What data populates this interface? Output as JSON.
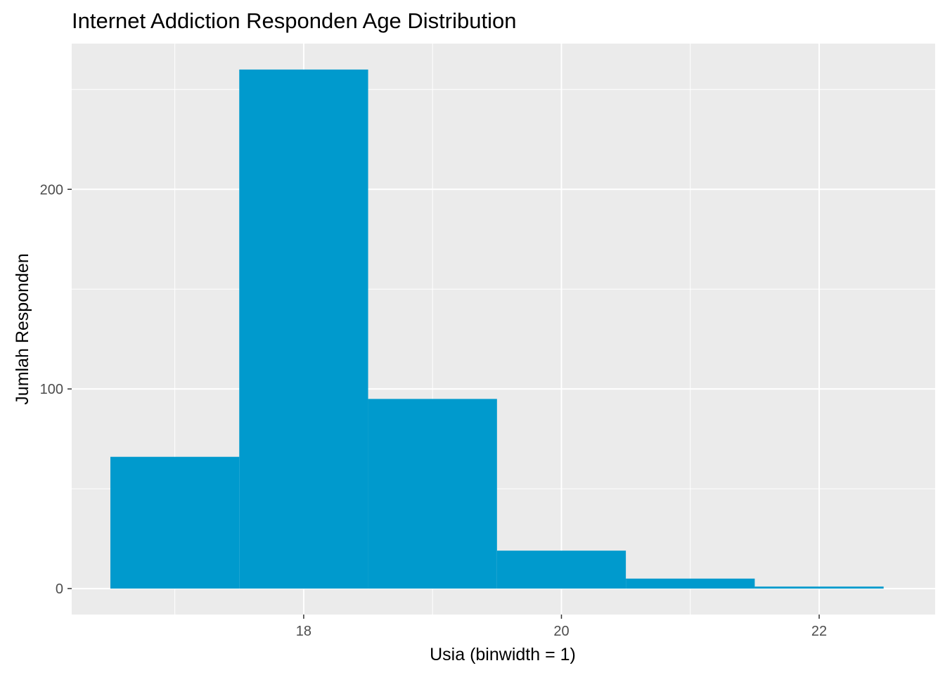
{
  "chart_data": {
    "type": "bar",
    "title": "Internet Addiction Responden Age Distribution",
    "xlabel": "Usia (binwidth = 1)",
    "ylabel": "Jumlah Responden",
    "binwidth": 1,
    "bins": [
      {
        "x": 17,
        "count": 66
      },
      {
        "x": 18,
        "count": 260
      },
      {
        "x": 19,
        "count": 95
      },
      {
        "x": 20,
        "count": 19
      },
      {
        "x": 21,
        "count": 5
      },
      {
        "x": 22,
        "count": 1
      }
    ],
    "xlim": [
      16.2,
      22.9
    ],
    "ylim": [
      -13,
      273
    ],
    "x_ticks": [
      18,
      20,
      22
    ],
    "x_minor": [
      17,
      19,
      21
    ],
    "y_ticks": [
      0,
      100,
      200
    ],
    "y_minor": [
      50,
      150,
      250
    ],
    "x_tick_labels": [
      "18",
      "20",
      "22"
    ],
    "y_tick_labels": [
      "0",
      "100",
      "200"
    ],
    "grid": true,
    "colors": {
      "bar": "#009ACD",
      "panel": "#EBEBEB",
      "grid": "#FFFFFF",
      "tick_text": "#4D4D4D",
      "tick_mark": "#333333"
    }
  }
}
